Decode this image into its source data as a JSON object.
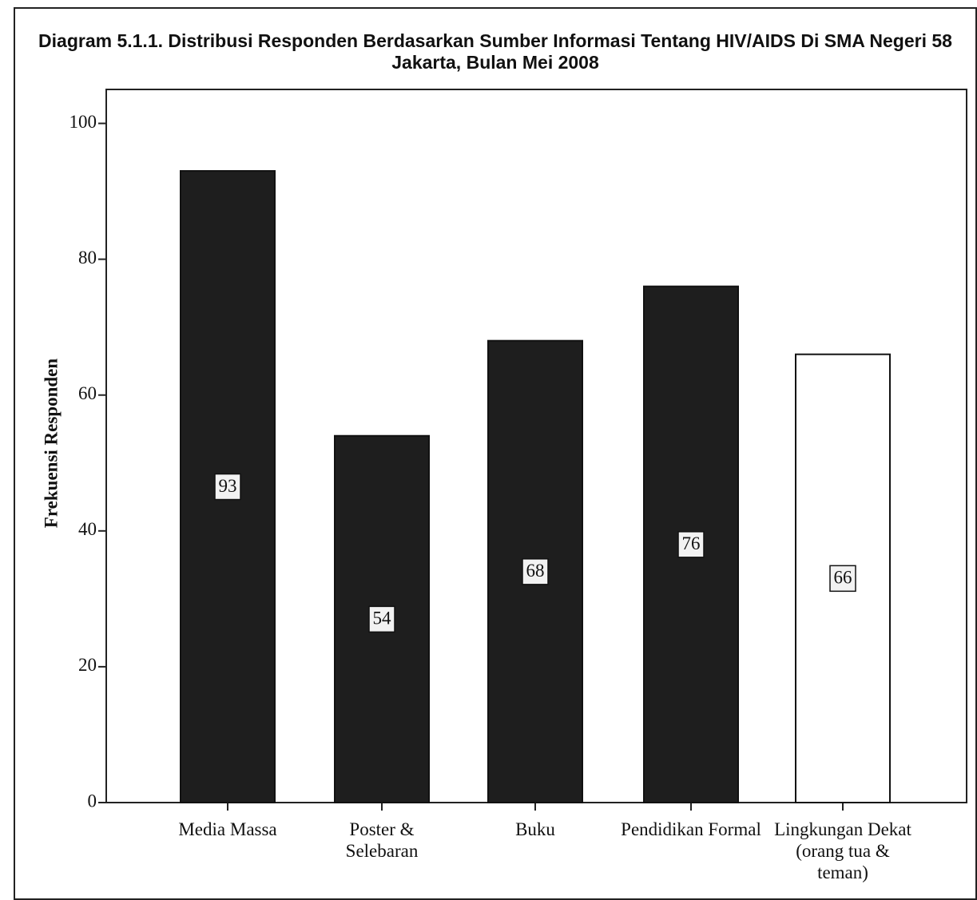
{
  "chart_data": {
    "type": "bar",
    "title": "Diagram 5.1.1. Distribusi Responden Berdasarkan Sumber Informasi Tentang HIV/AIDS Di SMA Negeri 58 Jakarta, Bulan Mei 2008",
    "y_label": "Frekuensi Responden",
    "categories": [
      "Media Massa",
      "Poster & Selebaran",
      "Buku",
      "Pendidikan Formal",
      "Lingkungan Dekat (orang tua & teman)"
    ],
    "values": [
      93,
      54,
      68,
      76,
      66
    ],
    "colors": [
      "#1e1e1e",
      "#1e1e1e",
      "#1e1e1e",
      "#1e1e1e",
      "#ffffff"
    ],
    "ylim": [
      0,
      105
    ],
    "yticks": [
      0,
      20,
      40,
      60,
      80,
      100
    ],
    "grid": false
  }
}
